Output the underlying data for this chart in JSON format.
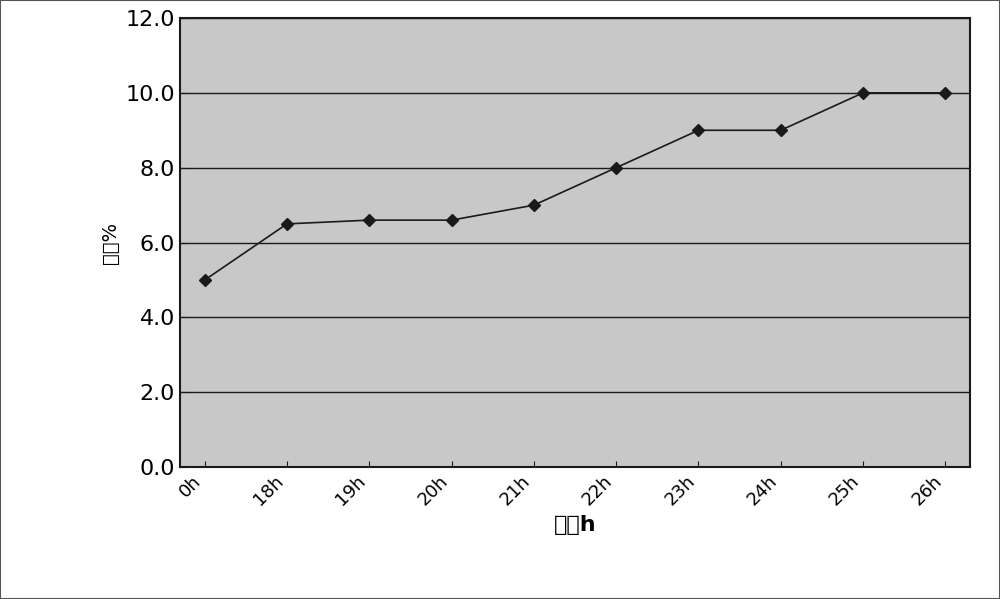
{
  "x_labels": [
    "0h",
    "18h",
    "19h",
    "20h",
    "21h",
    "22h",
    "23h",
    "24h",
    "25h",
    "26h"
  ],
  "x_values": [
    0,
    1,
    2,
    3,
    4,
    5,
    6,
    7,
    8,
    9
  ],
  "y_values": [
    5.0,
    6.5,
    6.6,
    6.6,
    7.0,
    8.0,
    9.0,
    9.0,
    10.0,
    10.0
  ],
  "xlabel": "时间h",
  "ylabel": "菌体%",
  "ylim": [
    0.0,
    12.0
  ],
  "yticks": [
    0.0,
    2.0,
    4.0,
    6.0,
    8.0,
    10.0,
    12.0
  ],
  "line_color": "#1a1a1a",
  "marker": "D",
  "marker_color": "#1a1a1a",
  "marker_size": 6,
  "line_width": 1.2,
  "plot_bg_color": "#c8c8c8",
  "fig_bg_color": "#ffffff",
  "grid_color": "#1a1a1a",
  "border_color": "#1a1a1a",
  "xlabel_fontsize": 16,
  "ylabel_fontsize": 14,
  "tick_fontsize": 16,
  "xtick_fontsize": 13,
  "outer_border_color": "#555555",
  "outer_border_lw": 1.5
}
